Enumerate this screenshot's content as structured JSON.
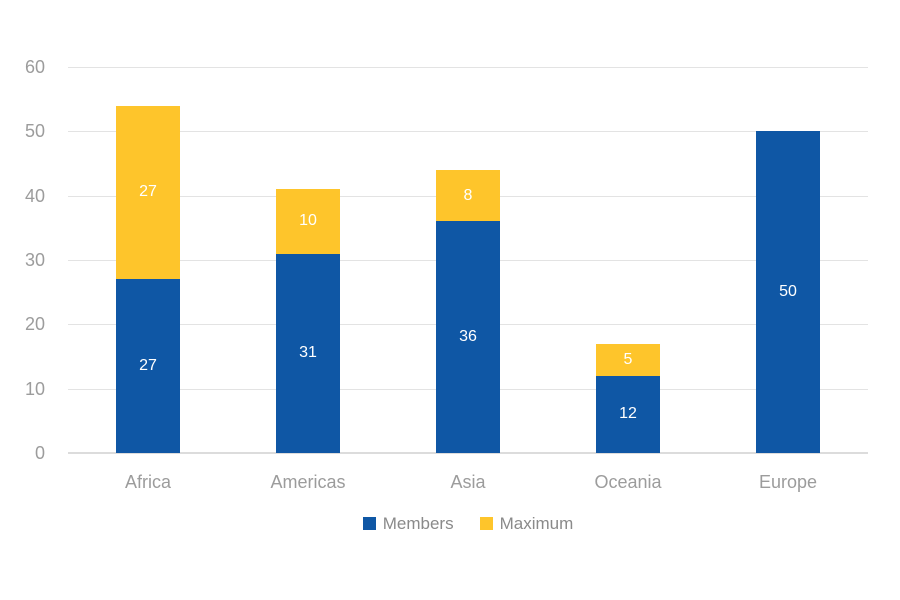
{
  "chart_data": {
    "type": "bar",
    "stacked": true,
    "title": "",
    "xlabel": "",
    "ylabel": "",
    "categories": [
      "Africa",
      "Americas",
      "Asia",
      "Oceania",
      "Europe"
    ],
    "series": [
      {
        "name": "Members",
        "color": "#0F57A5",
        "values": [
          27,
          31,
          36,
          12,
          50
        ]
      },
      {
        "name": "Maximum",
        "color": "#FEC52B",
        "values": [
          27,
          10,
          8,
          5,
          0
        ]
      }
    ],
    "ylim": [
      0,
      60
    ],
    "yticks": [
      0,
      10,
      20,
      30,
      40,
      50,
      60
    ],
    "grid": true,
    "legend_position": "bottom",
    "value_labels": "white text centered in each segment, hidden when value is 0"
  },
  "style": {
    "background": "#FFFFFF",
    "grid_color": "#E3E3E3",
    "axis_label_color": "#9C9C9C",
    "legend_text_color": "#8A8A8A",
    "value_label_color": "#FFFFFF"
  }
}
